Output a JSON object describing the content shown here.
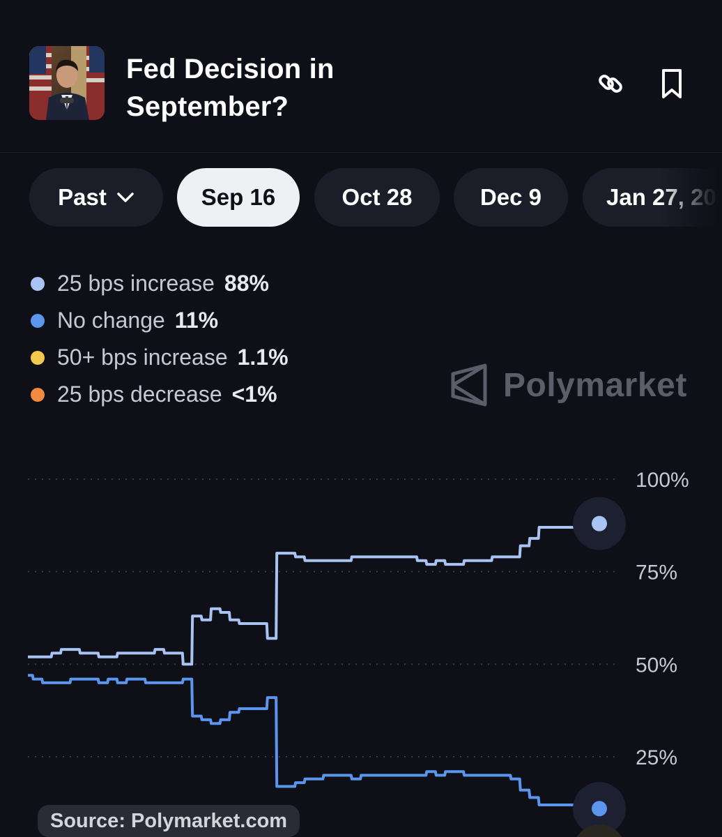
{
  "header": {
    "title": "Fed Decision in September?",
    "link_icon": "link-icon",
    "bookmark_icon": "bookmark-icon"
  },
  "tabs": [
    {
      "label": "Past",
      "icon": "chevron-down-icon"
    },
    {
      "label": "Sep 16",
      "active": true
    },
    {
      "label": "Oct 28"
    },
    {
      "label": "Dec 9"
    },
    {
      "label": "Jan 27, 20"
    }
  ],
  "legend": [
    {
      "label": "25 bps increase",
      "value": "88%",
      "color": "#a9c4f3"
    },
    {
      "label": "No change",
      "value": "11%",
      "color": "#5b95ee"
    },
    {
      "label": "50+ bps increase",
      "value": "1.1%",
      "color": "#f2c94c"
    },
    {
      "label": "25 bps decrease",
      "value": "<1%",
      "color": "#f08a3e"
    }
  ],
  "watermark": "Polymarket",
  "source": "Source: Polymarket.com",
  "chart_data": {
    "type": "line",
    "y_ticks": [
      "100%",
      "75%",
      "50%",
      "25%"
    ],
    "ylim": [
      0,
      100
    ],
    "series": [
      {
        "name": "25 bps increase",
        "color": "#a9c4f3",
        "values": [
          52,
          52,
          52,
          53,
          54,
          54,
          53,
          53,
          52,
          52,
          53,
          53,
          53,
          53,
          54,
          53,
          53,
          50,
          63,
          62,
          65,
          64,
          62,
          61,
          61,
          61,
          57,
          80,
          80,
          79,
          78,
          78,
          78,
          78,
          78,
          79,
          79,
          79,
          79,
          79,
          79,
          79,
          78,
          77,
          78,
          77,
          77,
          78,
          78,
          78,
          79,
          79,
          79,
          82,
          84,
          87,
          87,
          87,
          87,
          87,
          87,
          88
        ]
      },
      {
        "name": "No change",
        "color": "#5b95ee",
        "values": [
          47,
          46,
          45,
          45,
          45,
          46,
          46,
          46,
          45,
          46,
          45,
          46,
          46,
          45,
          45,
          45,
          45,
          46,
          36,
          35,
          34,
          35,
          37,
          38,
          38,
          38,
          41,
          17,
          17,
          18,
          19,
          19,
          20,
          20,
          20,
          19,
          20,
          20,
          20,
          20,
          20,
          20,
          20,
          21,
          20,
          21,
          21,
          20,
          20,
          20,
          20,
          20,
          19,
          16,
          14,
          12,
          12,
          12,
          12,
          12,
          11,
          11
        ]
      }
    ]
  }
}
